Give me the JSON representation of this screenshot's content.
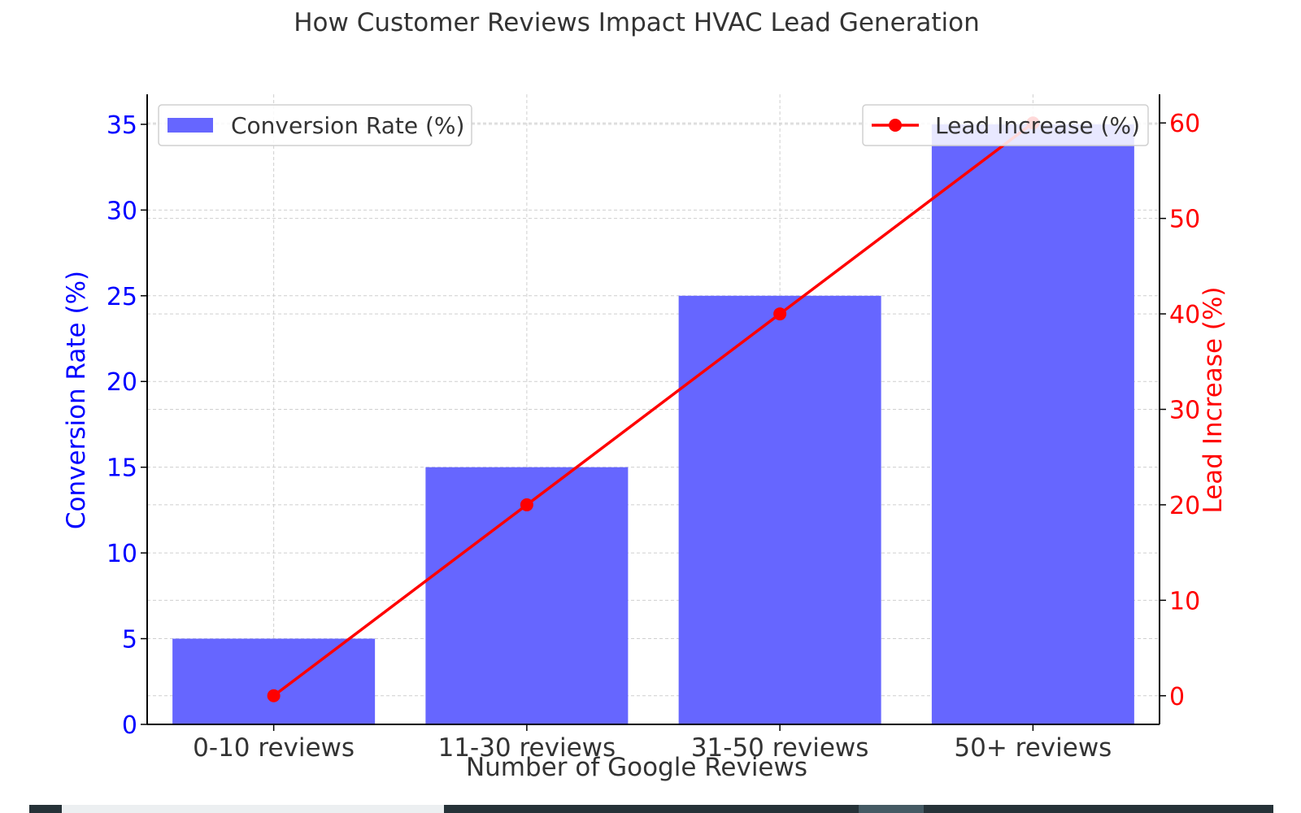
{
  "chart_data": {
    "type": "bar+line",
    "title": "How Customer Reviews Impact HVAC Lead Generation",
    "xlabel": "Number of Google Reviews",
    "categories": [
      "0-10 reviews",
      "11-30 reviews",
      "31-50 reviews",
      "50+ reviews"
    ],
    "bar_series": {
      "name": "Conversion Rate (%)",
      "axis_label": "Conversion Rate (%)",
      "values": [
        5,
        15,
        25,
        35
      ],
      "color": "#6666ff",
      "ylim": [
        0,
        36.75
      ],
      "ticks": [
        0,
        5,
        10,
        15,
        20,
        25,
        30,
        35
      ]
    },
    "line_series": {
      "name": "Lead Increase (%)",
      "axis_label": "Lead Increase (%)",
      "values": [
        0,
        20,
        40,
        60
      ],
      "color": "#ff0000",
      "ylim": [
        -3,
        63
      ],
      "ticks": [
        0,
        10,
        20,
        30,
        40,
        50,
        60
      ]
    },
    "grid": true,
    "legend_bar_position": "top-left",
    "legend_line_position": "top-right"
  },
  "colors": {
    "left_axis": "#0000ff",
    "right_axis": "#ff0000",
    "text": "#333333"
  }
}
